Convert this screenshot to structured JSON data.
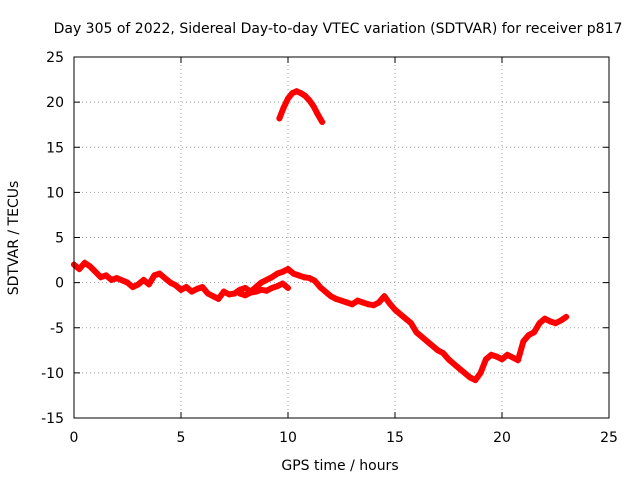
{
  "chart_data": {
    "type": "scatter",
    "title": "Day 305 of 2022, Sidereal Day-to-day VTEC variation (SDTVAR) for receiver p817",
    "xlabel": "GPS time / hours",
    "ylabel": "SDTVAR / TECUs",
    "xlim": [
      0,
      25
    ],
    "ylim": [
      -15,
      25
    ],
    "xticks": [
      0,
      5,
      10,
      15,
      20,
      25
    ],
    "yticks": [
      -15,
      -10,
      -5,
      0,
      5,
      10,
      15,
      20,
      25
    ],
    "xtick_labels": [
      "0",
      "5",
      "10",
      "15",
      "20",
      "25"
    ],
    "ytick_labels": [
      "-15",
      "-10",
      "-5",
      "0",
      "5",
      "10",
      "15",
      "20",
      "25"
    ],
    "grid": true,
    "legend": "none",
    "series": [
      {
        "name": "main-track",
        "color": "#ff0000",
        "x": [
          0.0,
          0.25,
          0.5,
          0.75,
          1.0,
          1.25,
          1.5,
          1.75,
          2.0,
          2.5,
          2.75,
          3.0,
          3.25,
          3.5,
          3.75,
          4.0,
          4.25,
          4.5,
          4.75,
          5.0,
          5.25,
          5.5,
          5.75,
          6.0,
          6.25,
          6.5,
          6.75,
          7.0,
          7.25,
          7.5,
          7.75,
          8.0,
          8.25,
          8.5,
          8.75,
          9.0,
          9.25,
          9.5,
          9.75,
          10.0,
          10.25,
          10.5,
          10.75,
          11.0,
          11.25,
          11.5,
          11.75,
          12.0,
          12.25,
          12.5,
          12.75,
          13.0,
          13.25,
          13.5,
          13.75,
          14.0,
          14.25,
          14.5,
          14.75,
          15.0,
          15.25,
          15.5,
          15.75,
          16.0,
          16.25,
          16.5,
          16.75,
          17.0,
          17.25,
          17.5,
          17.75,
          18.0,
          18.25,
          18.5,
          18.75,
          19.0,
          19.25,
          19.5,
          19.75,
          20.0,
          20.25,
          20.5,
          20.75,
          21.0,
          21.25,
          21.5,
          21.75,
          22.0,
          22.25,
          22.5,
          22.75,
          23.0
        ],
        "y": [
          2.0,
          1.5,
          2.2,
          1.8,
          1.2,
          0.6,
          0.8,
          0.3,
          0.5,
          0.0,
          -0.5,
          -0.2,
          0.3,
          -0.2,
          0.8,
          1.0,
          0.5,
          0.0,
          -0.3,
          -0.8,
          -0.5,
          -1.0,
          -0.7,
          -0.5,
          -1.2,
          -1.5,
          -1.8,
          -1.0,
          -1.3,
          -1.2,
          -0.8,
          -0.6,
          -1.0,
          -0.5,
          0.0,
          0.3,
          0.6,
          1.0,
          1.2,
          1.5,
          1.0,
          0.8,
          0.6,
          0.5,
          0.2,
          -0.5,
          -1.0,
          -1.5,
          -1.8,
          -2.0,
          -2.2,
          -2.4,
          -2.0,
          -2.2,
          -2.4,
          -2.5,
          -2.2,
          -1.5,
          -2.3,
          -3.0,
          -3.5,
          -4.0,
          -4.5,
          -5.5,
          -6.0,
          -6.5,
          -7.0,
          -7.5,
          -7.8,
          -8.5,
          -9.0,
          -9.5,
          -10.0,
          -10.5,
          -10.8,
          -10.0,
          -8.5,
          -8.0,
          -8.2,
          -8.5,
          -8.0,
          -8.3,
          -8.6,
          -6.5,
          -5.8,
          -5.5,
          -4.5,
          -4.0,
          -4.3,
          -4.5,
          -4.2,
          -3.8
        ]
      },
      {
        "name": "upper-arc",
        "color": "#ff0000",
        "x": [
          9.6,
          9.8,
          10.0,
          10.2,
          10.4,
          10.6,
          10.8,
          11.0,
          11.2,
          11.4,
          11.6
        ],
        "y": [
          18.2,
          19.4,
          20.4,
          21.0,
          21.2,
          21.0,
          20.7,
          20.2,
          19.5,
          18.6,
          17.8
        ]
      },
      {
        "name": "lower-branch",
        "color": "#ff0000",
        "x": [
          7.75,
          8.0,
          8.25,
          8.5,
          8.75,
          9.0,
          9.25,
          9.5,
          9.75,
          10.0
        ],
        "y": [
          -1.2,
          -1.4,
          -1.1,
          -1.0,
          -0.8,
          -0.9,
          -0.6,
          -0.4,
          -0.1,
          -0.6
        ]
      }
    ]
  }
}
